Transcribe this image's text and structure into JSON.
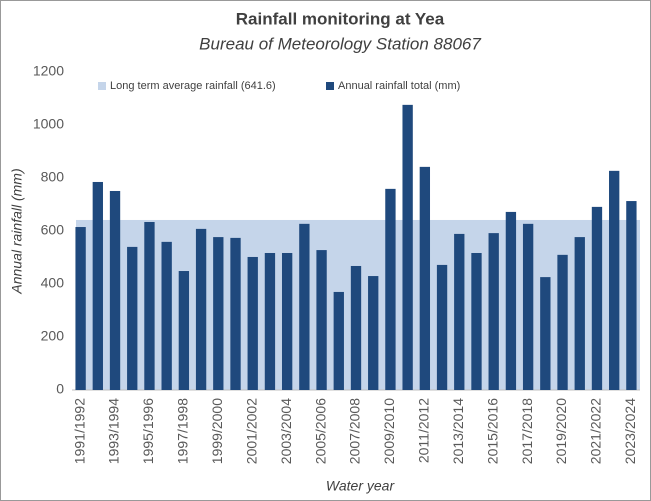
{
  "chart_data": {
    "type": "bar",
    "title": "Rainfall monitoring at Yea",
    "subtitle": "Bureau of Meteorology Station 88067",
    "y_label": "Annual rainfall (mm)",
    "x_label": "Water year",
    "categories": [
      "1991/1992",
      null,
      "1993/1994",
      null,
      "1995/1996",
      null,
      "1997/1998",
      null,
      "1999/2000",
      null,
      "2001/2002",
      null,
      "2003/2004",
      null,
      "2005/2006",
      null,
      "2007/2008",
      null,
      "2009/2010",
      null,
      "2011/2012",
      null,
      "2013/2014",
      null,
      "2015/2016",
      null,
      "2017/2018",
      null,
      "2019/2020",
      null,
      "2021/2022",
      null,
      "2023/2024"
    ],
    "series": [
      {
        "name": "Annual rainfall total (mm)",
        "color": "#1f497d",
        "values": [
          615,
          785,
          751,
          540,
          634,
          559,
          449,
          608,
          577,
          574,
          502,
          517,
          517,
          627,
          528,
          370,
          468,
          430,
          759,
          1076,
          842,
          472,
          589,
          517,
          592,
          672,
          627,
          426,
          510,
          577,
          691,
          827,
          713
        ]
      }
    ],
    "average": {
      "name": "Long term average rainfall (641.6)",
      "value": 641.6,
      "color": "#c5d5ea"
    },
    "ylim": [
      0,
      1200
    ],
    "yticks": [
      0,
      200,
      400,
      600,
      800,
      1000,
      1200
    ]
  }
}
